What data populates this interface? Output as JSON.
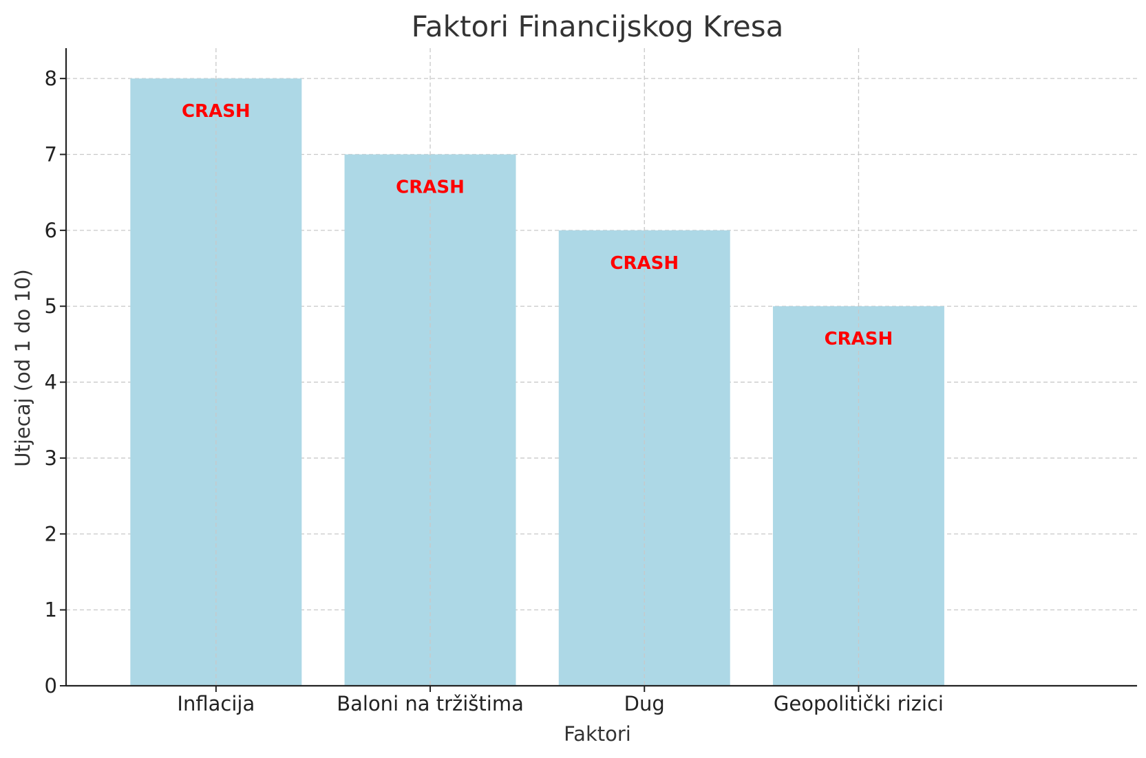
{
  "chart_data": {
    "type": "bar",
    "title": "Faktori Financijskog Kresa",
    "xlabel": "Faktori",
    "ylabel": "Utjecaj (od 1 do 10)",
    "categories": [
      "Inflacija",
      "Baloni na tržištima",
      "Dug",
      "Geopolitički rizici"
    ],
    "values": [
      8,
      7,
      6,
      5
    ],
    "bar_labels": [
      "CRASH",
      "CRASH",
      "CRASH",
      "CRASH"
    ],
    "yticks": [
      0,
      1,
      2,
      3,
      4,
      5,
      6,
      7,
      8
    ],
    "ylim": [
      0,
      8.4
    ],
    "grid": true,
    "colors": {
      "bar": "#add8e6",
      "bar_label": "#ff0000",
      "grid": "#c8c8c8",
      "axis": "#222222",
      "text": "#333333"
    }
  }
}
